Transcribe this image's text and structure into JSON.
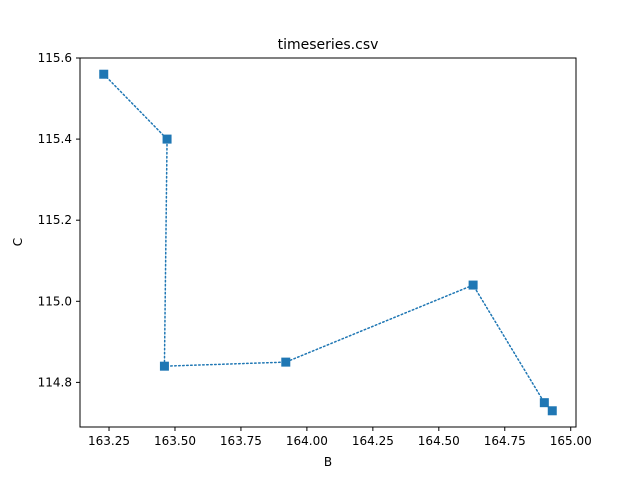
{
  "chart_data": {
    "type": "line",
    "title": "timeseries.csv",
    "xlabel": "B",
    "ylabel": "C",
    "xlim": [
      163.14,
      165.02
    ],
    "ylim": [
      114.69,
      115.6
    ],
    "x_ticks": [
      163.25,
      163.5,
      163.75,
      164.0,
      164.25,
      164.5,
      164.75,
      165.0
    ],
    "x_tick_labels": [
      "163.25",
      "163.50",
      "163.75",
      "164.00",
      "164.25",
      "164.50",
      "164.75",
      "165.00"
    ],
    "y_ticks": [
      114.8,
      115.0,
      115.2,
      115.4,
      115.6
    ],
    "y_tick_labels": [
      "114.8",
      "115.0",
      "115.2",
      "115.4",
      "115.6"
    ],
    "grid": false,
    "series": [
      {
        "color": "#1f77b4",
        "line_style": "dotted",
        "marker": "square",
        "points": [
          {
            "x": 163.23,
            "y": 115.56
          },
          {
            "x": 163.47,
            "y": 115.4
          },
          {
            "x": 163.46,
            "y": 114.84
          },
          {
            "x": 163.92,
            "y": 114.85
          },
          {
            "x": 164.63,
            "y": 115.04
          },
          {
            "x": 164.9,
            "y": 114.75
          },
          {
            "x": 164.93,
            "y": 114.73
          }
        ]
      }
    ]
  }
}
